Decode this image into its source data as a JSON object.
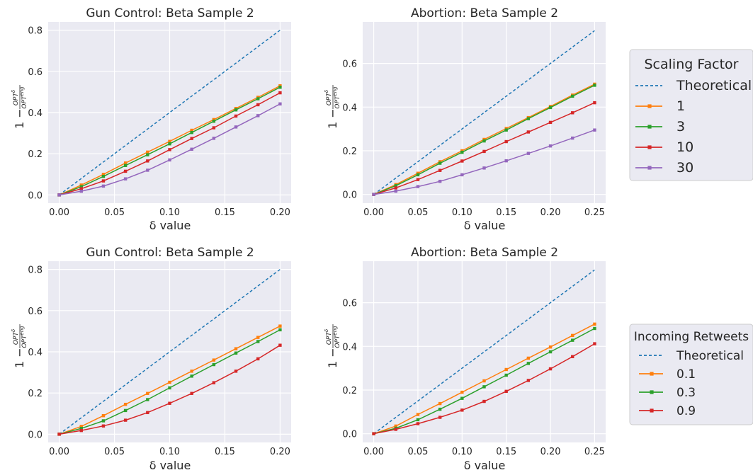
{
  "chart_data": [
    {
      "type": "line",
      "title": "Gun Control: Beta Sample 2",
      "xlabel": "δ value",
      "ylabel": "1 − OPT^δ / OPT^eng",
      "xlim": [
        -0.01,
        0.21
      ],
      "ylim": [
        -0.04,
        0.84
      ],
      "xticks": [
        "0.00",
        "0.05",
        "0.10",
        "0.15",
        "0.20"
      ],
      "yticks": [
        "0.0",
        "0.2",
        "0.4",
        "0.6",
        "0.8"
      ],
      "grid": true,
      "x": [
        0.0,
        0.02,
        0.04,
        0.06,
        0.08,
        0.1,
        0.12,
        0.14,
        0.16,
        0.18,
        0.2
      ],
      "series": [
        {
          "name": "Theoretical",
          "color": "#1f77b4",
          "dashed": true,
          "markers": false,
          "values": [
            0.0,
            0.08,
            0.16,
            0.24,
            0.32,
            0.4,
            0.48,
            0.56,
            0.64,
            0.72,
            0.8
          ]
        },
        {
          "name": "1",
          "color": "#ff7f0e",
          "markers": true,
          "values": [
            0.0,
            0.048,
            0.1,
            0.155,
            0.208,
            0.26,
            0.314,
            0.366,
            0.42,
            0.474,
            0.53
          ]
        },
        {
          "name": "3",
          "color": "#2ca02c",
          "markers": true,
          "values": [
            0.0,
            0.04,
            0.09,
            0.143,
            0.195,
            0.248,
            0.303,
            0.358,
            0.413,
            0.467,
            0.523
          ]
        },
        {
          "name": "10",
          "color": "#d62728",
          "markers": true,
          "values": [
            0.0,
            0.03,
            0.068,
            0.115,
            0.165,
            0.22,
            0.274,
            0.326,
            0.383,
            0.438,
            0.496
          ]
        },
        {
          "name": "30",
          "color": "#9467bd",
          "markers": true,
          "values": [
            0.0,
            0.018,
            0.043,
            0.078,
            0.12,
            0.17,
            0.222,
            0.275,
            0.33,
            0.385,
            0.442
          ]
        }
      ]
    },
    {
      "type": "line",
      "title": "Abortion: Beta Sample 2",
      "xlabel": "δ value",
      "ylabel": "1 − OPT^δ / OPT^eng",
      "xlim": [
        -0.0125,
        0.2625
      ],
      "ylim": [
        -0.04,
        0.79
      ],
      "xticks": [
        "0.00",
        "0.05",
        "0.10",
        "0.15",
        "0.20",
        "0.25"
      ],
      "yticks": [
        "0.0",
        "0.2",
        "0.4",
        "0.6"
      ],
      "grid": true,
      "x": [
        0.0,
        0.025,
        0.05,
        0.075,
        0.1,
        0.125,
        0.15,
        0.175,
        0.2,
        0.225,
        0.25
      ],
      "series": [
        {
          "name": "Theoretical",
          "color": "#1f77b4",
          "dashed": true,
          "markers": false,
          "values": [
            0.0,
            0.075,
            0.15,
            0.225,
            0.3,
            0.375,
            0.45,
            0.525,
            0.6,
            0.675,
            0.75
          ]
        },
        {
          "name": "1",
          "color": "#ff7f0e",
          "markers": true,
          "values": [
            0.0,
            0.045,
            0.097,
            0.15,
            0.2,
            0.252,
            0.302,
            0.352,
            0.403,
            0.455,
            0.505
          ]
        },
        {
          "name": "3",
          "color": "#2ca02c",
          "markers": true,
          "values": [
            0.0,
            0.04,
            0.09,
            0.143,
            0.193,
            0.245,
            0.295,
            0.347,
            0.398,
            0.45,
            0.5
          ]
        },
        {
          "name": "10",
          "color": "#d62728",
          "markers": true,
          "values": [
            0.0,
            0.03,
            0.068,
            0.11,
            0.153,
            0.197,
            0.242,
            0.286,
            0.33,
            0.374,
            0.42
          ]
        },
        {
          "name": "30",
          "color": "#9467bd",
          "markers": true,
          "values": [
            0.0,
            0.015,
            0.036,
            0.06,
            0.09,
            0.121,
            0.154,
            0.188,
            0.222,
            0.258,
            0.295
          ]
        }
      ]
    },
    {
      "type": "line",
      "title": "Gun Control: Beta Sample 2",
      "xlabel": "δ value",
      "ylabel": "1 − OPT^δ / OPT^eng",
      "xlim": [
        -0.01,
        0.21
      ],
      "ylim": [
        -0.04,
        0.84
      ],
      "xticks": [
        "0.00",
        "0.05",
        "0.10",
        "0.15",
        "0.20"
      ],
      "yticks": [
        "0.0",
        "0.2",
        "0.4",
        "0.6",
        "0.8"
      ],
      "grid": true,
      "x": [
        0.0,
        0.02,
        0.04,
        0.06,
        0.08,
        0.1,
        0.12,
        0.14,
        0.16,
        0.18,
        0.2
      ],
      "series": [
        {
          "name": "Theoretical",
          "color": "#1f77b4",
          "dashed": true,
          "markers": false,
          "values": [
            0.0,
            0.08,
            0.16,
            0.24,
            0.32,
            0.4,
            0.48,
            0.56,
            0.64,
            0.72,
            0.8
          ]
        },
        {
          "name": "0.1",
          "color": "#ff7f0e",
          "markers": true,
          "values": [
            0.0,
            0.038,
            0.09,
            0.145,
            0.198,
            0.252,
            0.306,
            0.36,
            0.415,
            0.47,
            0.525
          ]
        },
        {
          "name": "0.3",
          "color": "#2ca02c",
          "markers": true,
          "values": [
            0.0,
            0.028,
            0.065,
            0.115,
            0.168,
            0.225,
            0.282,
            0.338,
            0.394,
            0.45,
            0.507
          ]
        },
        {
          "name": "0.9",
          "color": "#d62728",
          "markers": true,
          "values": [
            0.0,
            0.018,
            0.04,
            0.068,
            0.105,
            0.15,
            0.198,
            0.25,
            0.306,
            0.366,
            0.432
          ]
        }
      ]
    },
    {
      "type": "line",
      "title": "Abortion: Beta Sample 2",
      "xlabel": "δ value",
      "ylabel": "1 − OPT^δ / OPT^eng",
      "xlim": [
        -0.0125,
        0.2625
      ],
      "ylim": [
        -0.04,
        0.79
      ],
      "xticks": [
        "0.00",
        "0.05",
        "0.10",
        "0.15",
        "0.20",
        "0.25"
      ],
      "yticks": [
        "0.0",
        "0.2",
        "0.4",
        "0.6"
      ],
      "grid": true,
      "x": [
        0.0,
        0.025,
        0.05,
        0.075,
        0.1,
        0.125,
        0.15,
        0.175,
        0.2,
        0.225,
        0.25
      ],
      "series": [
        {
          "name": "Theoretical",
          "color": "#1f77b4",
          "dashed": true,
          "markers": false,
          "values": [
            0.0,
            0.075,
            0.15,
            0.225,
            0.3,
            0.375,
            0.45,
            0.525,
            0.6,
            0.675,
            0.75
          ]
        },
        {
          "name": "0.1",
          "color": "#ff7f0e",
          "markers": true,
          "values": [
            0.0,
            0.035,
            0.088,
            0.138,
            0.19,
            0.242,
            0.294,
            0.346,
            0.397,
            0.45,
            0.502
          ]
        },
        {
          "name": "0.3",
          "color": "#2ca02c",
          "markers": true,
          "values": [
            0.0,
            0.025,
            0.064,
            0.112,
            0.162,
            0.215,
            0.268,
            0.322,
            0.375,
            0.428,
            0.482
          ]
        },
        {
          "name": "0.9",
          "color": "#d62728",
          "markers": true,
          "values": [
            0.0,
            0.02,
            0.046,
            0.075,
            0.108,
            0.148,
            0.194,
            0.244,
            0.297,
            0.353,
            0.412
          ]
        }
      ]
    }
  ],
  "legends": [
    {
      "title": "Scaling Factor",
      "placement": "right of top row",
      "entries": [
        {
          "label": "Theoretical",
          "color": "#1f77b4",
          "dashed": true
        },
        {
          "label": "1",
          "color": "#ff7f0e"
        },
        {
          "label": "3",
          "color": "#2ca02c"
        },
        {
          "label": "10",
          "color": "#d62728"
        },
        {
          "label": "30",
          "color": "#9467bd"
        }
      ]
    },
    {
      "title": "Incoming Retweets",
      "placement": "right of bottom row",
      "entries": [
        {
          "label": "Theoretical",
          "color": "#1f77b4",
          "dashed": true
        },
        {
          "label": "0.1",
          "color": "#ff7f0e"
        },
        {
          "label": "0.3",
          "color": "#2ca02c"
        },
        {
          "label": "0.9",
          "color": "#d62728"
        }
      ]
    }
  ]
}
